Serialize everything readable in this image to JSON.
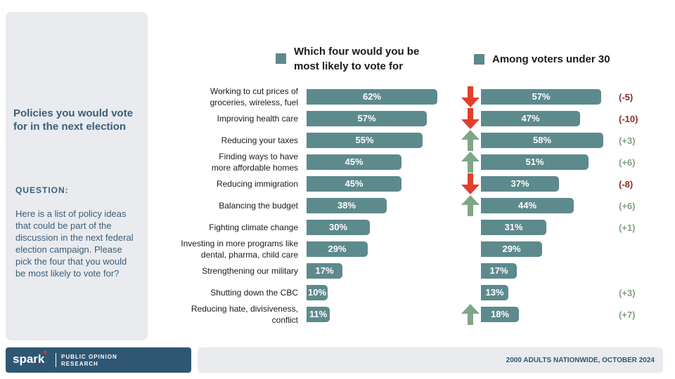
{
  "panel": {
    "title": "Policies you would vote for in the next election",
    "question_label": "QUESTION:",
    "question_text": "Here is a list of policy ideas that could be part of the discussion in the next federal election campaign. Please pick the four that you would be most likely to vote for?"
  },
  "footer": {
    "logo_word": "spark",
    "logo_star": "*",
    "logo_sub": "PUBLIC OPINION RESEARCH",
    "source": "2000 ADULTS NATIONWIDE, OCTOBER 2024"
  },
  "colors": {
    "bar": "#5d8a8d",
    "arrow_down": "#e0402a",
    "arrow_up": "#80a688",
    "change_negative": "#8b2e2a",
    "change_positive": "#7fa27f"
  },
  "chart_data": {
    "type": "bar",
    "orientation": "horizontal",
    "categories": [
      "Working to cut prices of groceries, wireless, fuel",
      "Improving health care",
      "Reducing your taxes",
      "Finding ways to have more affordable homes",
      "Reducing immigration",
      "Balancing the budget",
      "Fighting climate change",
      "Investing in more programs like dental, pharma, child care",
      "Strengthening our military",
      "Shutting down the CBC",
      "Reducing hate, divisiveness, conflict"
    ],
    "category_lines": [
      [
        "Working to cut prices of",
        "groceries, wireless, fuel"
      ],
      [
        "Improving health care"
      ],
      [
        "Reducing your taxes"
      ],
      [
        "Finding ways to have",
        "more affordable homes"
      ],
      [
        "Reducing immigration"
      ],
      [
        "Balancing the budget"
      ],
      [
        "Fighting climate change"
      ],
      [
        "Investing in more programs like",
        "dental, pharma, child care"
      ],
      [
        "Strengthening our military"
      ],
      [
        "Shutting down the CBC"
      ],
      [
        "Reducing hate, divisiveness,",
        "conflict"
      ]
    ],
    "series": [
      {
        "name": "Which four would you be most likely to vote for",
        "values": [
          62,
          57,
          55,
          45,
          45,
          38,
          30,
          29,
          17,
          10,
          11
        ],
        "labels": [
          "62%",
          "57%",
          "55%",
          "45%",
          "45%",
          "38%",
          "30%",
          "29%",
          "17%",
          "10%",
          "11%"
        ]
      },
      {
        "name": "Among voters under 30",
        "values": [
          57,
          47,
          58,
          51,
          37,
          44,
          31,
          29,
          17,
          13,
          18
        ],
        "labels": [
          "57%",
          "47%",
          "58%",
          "51%",
          "37%",
          "44%",
          "31%",
          "29%",
          "17%",
          "13%",
          "18%"
        ]
      }
    ],
    "arrows": [
      "down",
      "down",
      "up",
      "up",
      "down",
      "up",
      "",
      "",
      "",
      "",
      "up"
    ],
    "changes": [
      "(-5)",
      "(-10)",
      "(+3)",
      "(+6)",
      "(-8)",
      "(+6)",
      "(+1)",
      "",
      "",
      "(+3)",
      "(+7)"
    ],
    "xlim": [
      0,
      100
    ],
    "legend": "top"
  }
}
